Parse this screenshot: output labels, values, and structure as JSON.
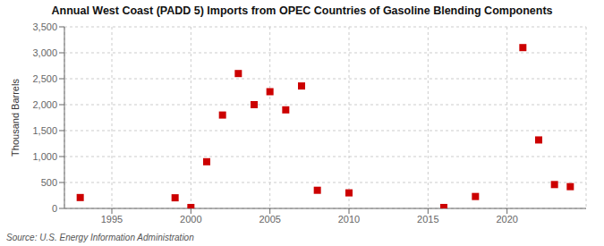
{
  "chart_data": {
    "type": "scatter",
    "title": "Annual West Coast (PADD 5) Imports from OPEC Countries of Gasoline Blending Components",
    "ylabel": "Thousand Barrels",
    "source": "Source: U.S. Energy Information Administration",
    "x": [
      1993,
      1999,
      2000,
      2001,
      2002,
      2003,
      2004,
      2005,
      2006,
      2007,
      2008,
      2010,
      2016,
      2018,
      2021,
      2022,
      2023,
      2024
    ],
    "values": [
      210,
      205,
      18,
      900,
      1800,
      2600,
      2000,
      2250,
      1900,
      2360,
      350,
      300,
      18,
      230,
      3100,
      1320,
      460,
      420
    ],
    "color": "#cc0000",
    "marker": "square",
    "xlim": [
      1992,
      2025
    ],
    "ylim": [
      0,
      3500
    ],
    "xticks": [
      1995,
      2000,
      2005,
      2010,
      2015,
      2020
    ],
    "yticks": [
      0,
      500,
      {
        "value": 1000,
        "label": "1,000"
      },
      {
        "value": 1500,
        "label": "1,500"
      },
      {
        "value": 2000,
        "label": "2,000"
      },
      {
        "value": 2500,
        "label": "2,500"
      },
      {
        "value": 3000,
        "label": "3,000"
      },
      {
        "value": 3500,
        "label": "3,500"
      }
    ],
    "grid": true
  }
}
